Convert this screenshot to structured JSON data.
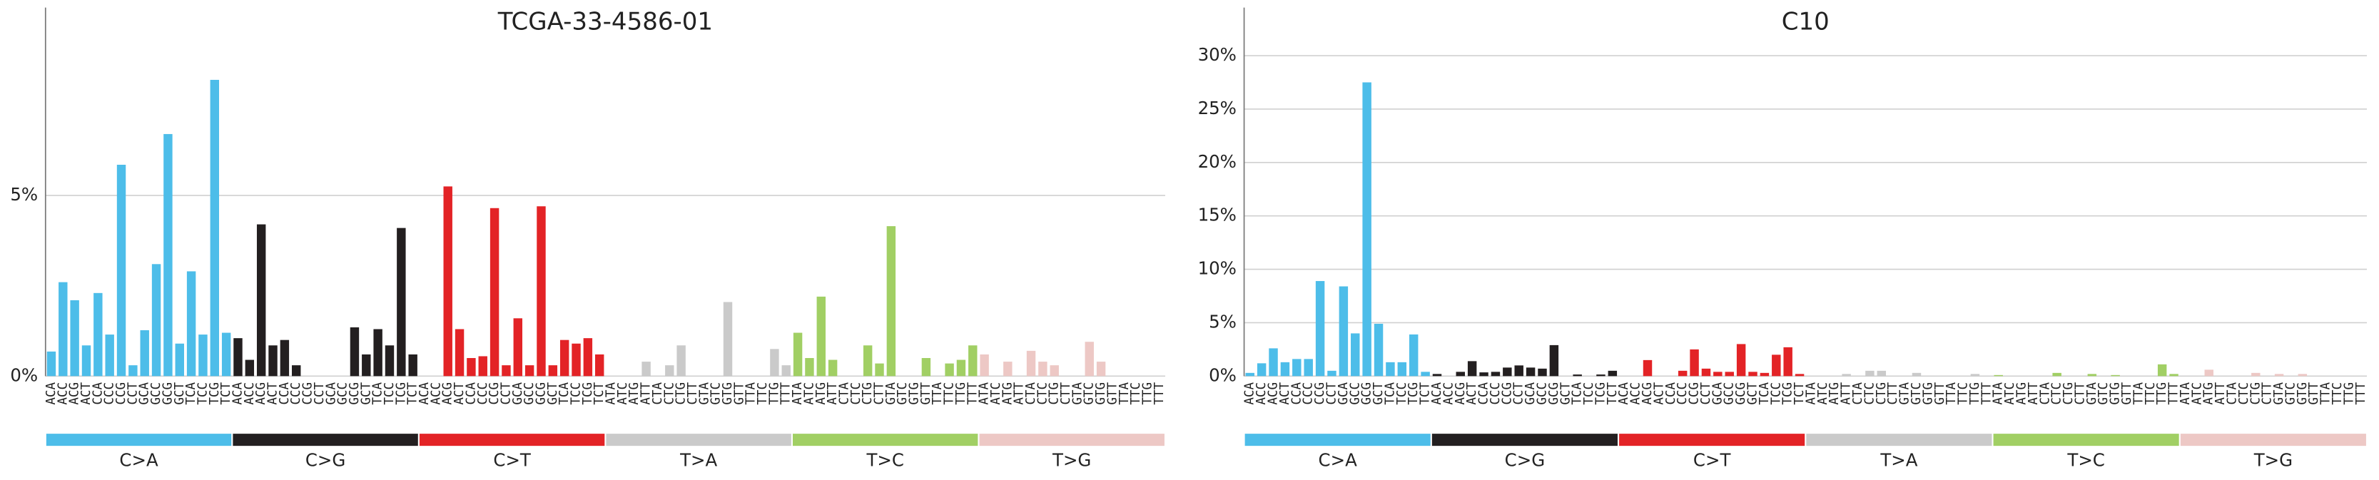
{
  "chart_data": [
    {
      "type": "bar",
      "title": "TCGA-33-4586-01",
      "categories": [
        "ACA",
        "ACC",
        "ACG",
        "ACT",
        "CCA",
        "CCC",
        "CCG",
        "CCT",
        "GCA",
        "GCC",
        "GCG",
        "GCT",
        "TCA",
        "TCC",
        "TCG",
        "TCT",
        "ACA",
        "ACC",
        "ACG",
        "ACT",
        "CCA",
        "CCC",
        "CCG",
        "CCT",
        "GCA",
        "GCC",
        "GCG",
        "GCT",
        "TCA",
        "TCC",
        "TCG",
        "TCT",
        "ACA",
        "ACC",
        "ACG",
        "ACT",
        "CCA",
        "CCC",
        "CCG",
        "CCT",
        "GCA",
        "GCC",
        "GCG",
        "GCT",
        "TCA",
        "TCC",
        "TCG",
        "TCT",
        "ATA",
        "ATC",
        "ATG",
        "ATT",
        "CTA",
        "CTC",
        "CTG",
        "CTT",
        "GTA",
        "GTC",
        "GTG",
        "GTT",
        "TTA",
        "TTC",
        "TTG",
        "TTT",
        "ATA",
        "ATC",
        "ATG",
        "ATT",
        "CTA",
        "CTC",
        "CTG",
        "CTT",
        "GTA",
        "GTC",
        "GTG",
        "GTT",
        "TTA",
        "TTC",
        "TTG",
        "TTT",
        "ATA",
        "ATC",
        "ATG",
        "ATT",
        "CTA",
        "CTC",
        "CTG",
        "CTT",
        "GTA",
        "GTC",
        "GTG",
        "GTT",
        "TTA",
        "TTC",
        "TTG",
        "TTT"
      ],
      "values": [
        0.68,
        2.6,
        2.1,
        0.85,
        2.3,
        1.15,
        5.85,
        0.3,
        1.27,
        3.1,
        6.7,
        0.9,
        2.9,
        1.15,
        8.2,
        1.2,
        1.05,
        0.45,
        4.2,
        0.85,
        1.0,
        0.3,
        0,
        0,
        0,
        0,
        1.35,
        0.6,
        1.3,
        0.85,
        4.1,
        0.6,
        0,
        0,
        5.25,
        1.3,
        0.5,
        0.55,
        4.65,
        0.3,
        1.6,
        0.3,
        4.7,
        0.3,
        1.0,
        0.9,
        1.05,
        0.6,
        0,
        0,
        0,
        0.4,
        0,
        0.3,
        0.85,
        0,
        0,
        0,
        2.05,
        0,
        0,
        0,
        0.75,
        0.3,
        1.2,
        0.5,
        2.2,
        0.45,
        0,
        0,
        0.85,
        0.35,
        4.15,
        0,
        0,
        0.5,
        0,
        0.35,
        0.45,
        0.85,
        0.6,
        0,
        0.4,
        0,
        0.7,
        0.4,
        0.3,
        0,
        0,
        0.95,
        0.4,
        0,
        0,
        0,
        0,
        0
      ],
      "groups": [
        {
          "name": "C>A",
          "color": "#4dbde9"
        },
        {
          "name": "C>G",
          "color": "#231f20"
        },
        {
          "name": "C>T",
          "color": "#e32326"
        },
        {
          "name": "T>A",
          "color": "#cacaca"
        },
        {
          "name": "T>C",
          "color": "#a1cf64"
        },
        {
          "name": "T>G",
          "color": "#edc8c5"
        }
      ],
      "ylim": [
        0,
        10.2
      ],
      "yticks": [
        {
          "value": 0,
          "label": "0%"
        },
        {
          "value": 5,
          "label": "5%"
        }
      ],
      "grid": true
    },
    {
      "type": "bar",
      "title": "C10",
      "categories": [
        "ACA",
        "ACC",
        "ACG",
        "ACT",
        "CCA",
        "CCC",
        "CCG",
        "CCT",
        "GCA",
        "GCC",
        "GCG",
        "GCT",
        "TCA",
        "TCC",
        "TCG",
        "TCT",
        "ACA",
        "ACC",
        "ACG",
        "ACT",
        "CCA",
        "CCC",
        "CCG",
        "CCT",
        "GCA",
        "GCC",
        "GCG",
        "GCT",
        "TCA",
        "TCC",
        "TCG",
        "TCT",
        "ACA",
        "ACC",
        "ACG",
        "ACT",
        "CCA",
        "CCC",
        "CCG",
        "CCT",
        "GCA",
        "GCC",
        "GCG",
        "GCT",
        "TCA",
        "TCC",
        "TCG",
        "TCT",
        "ATA",
        "ATC",
        "ATG",
        "ATT",
        "CTA",
        "CTC",
        "CTG",
        "CTT",
        "GTA",
        "GTC",
        "GTG",
        "GTT",
        "TTA",
        "TTC",
        "TTG",
        "TTT",
        "ATA",
        "ATC",
        "ATG",
        "ATT",
        "CTA",
        "CTC",
        "CTG",
        "CTT",
        "GTA",
        "GTC",
        "GTG",
        "GTT",
        "TTA",
        "TTC",
        "TTG",
        "TTT",
        "ATA",
        "ATC",
        "ATG",
        "ATT",
        "CTA",
        "CTC",
        "CTG",
        "CTT",
        "GTA",
        "GTC",
        "GTG",
        "GTT",
        "TTA",
        "TTC",
        "TTG",
        "TTT"
      ],
      "values": [
        0.3,
        1.2,
        2.6,
        1.3,
        1.6,
        1.6,
        8.9,
        0.5,
        8.4,
        4.0,
        27.5,
        4.9,
        1.3,
        1.3,
        3.9,
        0.4,
        0.2,
        0,
        0.4,
        1.4,
        0.35,
        0.4,
        0.8,
        1.0,
        0.8,
        0.7,
        2.9,
        0,
        0.15,
        0,
        0.15,
        0.5,
        0,
        0,
        1.5,
        0,
        0,
        0.5,
        2.5,
        0.7,
        0.4,
        0.4,
        3.0,
        0.4,
        0.3,
        2.0,
        2.7,
        0.2,
        0,
        0,
        0,
        0.2,
        0,
        0.5,
        0.5,
        0,
        0,
        0.3,
        0,
        0,
        0,
        0,
        0.2,
        0,
        0.1,
        0,
        0,
        0,
        0,
        0.3,
        0,
        0,
        0.2,
        0,
        0.1,
        0,
        0,
        0,
        1.1,
        0.2,
        0,
        0,
        0.6,
        0,
        0,
        0,
        0.3,
        0,
        0.2,
        0,
        0.2,
        0,
        0,
        0,
        0,
        0
      ],
      "groups": [
        {
          "name": "C>A",
          "color": "#4dbde9"
        },
        {
          "name": "C>G",
          "color": "#231f20"
        },
        {
          "name": "C>T",
          "color": "#e32326"
        },
        {
          "name": "T>A",
          "color": "#cacaca"
        },
        {
          "name": "T>C",
          "color": "#a1cf64"
        },
        {
          "name": "T>G",
          "color": "#edc8c5"
        }
      ],
      "ylim": [
        0,
        34.5
      ],
      "yticks": [
        {
          "value": 0,
          "label": "0%"
        },
        {
          "value": 5,
          "label": "5%"
        },
        {
          "value": 10,
          "label": "10%"
        },
        {
          "value": 15,
          "label": "15%"
        },
        {
          "value": 20,
          "label": "20%"
        },
        {
          "value": 25,
          "label": "25%"
        },
        {
          "value": 30,
          "label": "30%"
        }
      ],
      "grid": true
    }
  ]
}
